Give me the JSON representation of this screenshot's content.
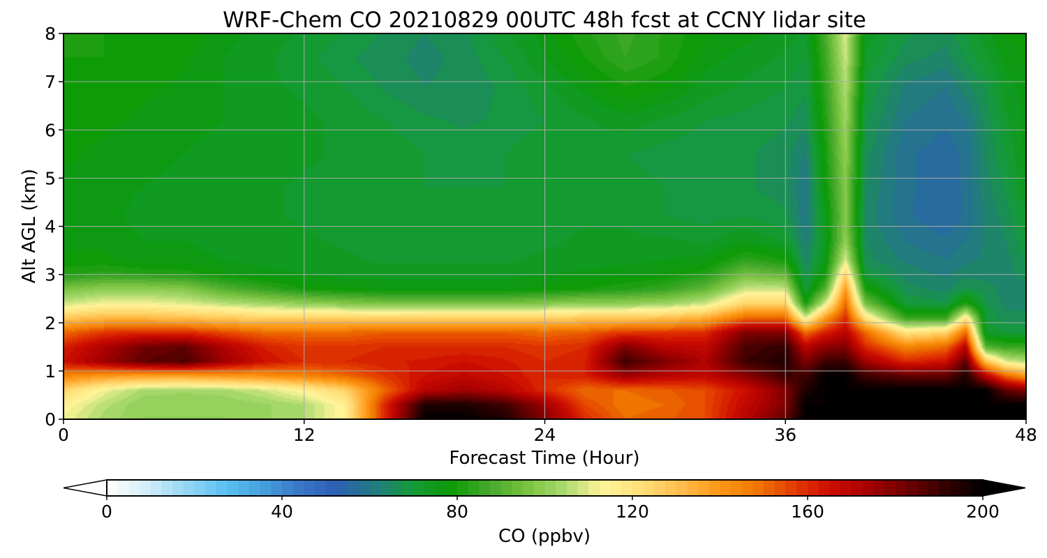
{
  "chart_data": {
    "type": "heatmap",
    "title": "WRF-Chem CO  20210829 00UTC 48h fcst at CCNY lidar site",
    "xlabel": "Forecast Time (Hour)",
    "ylabel": "Alt AGL (km)",
    "xlim": [
      0,
      48
    ],
    "ylim": [
      0,
      8
    ],
    "xticks": [
      0,
      12,
      24,
      36,
      48
    ],
    "yticks": [
      0,
      1,
      2,
      3,
      4,
      5,
      6,
      7,
      8
    ],
    "grid": true,
    "colorbar": {
      "label": "CO  (ppbv)",
      "min": 0,
      "max": 200,
      "ticks": [
        0,
        40,
        80,
        120,
        160,
        200
      ],
      "extend": "both",
      "colors": [
        "#ffffff",
        "#d6eefa",
        "#9ad8f5",
        "#5fc3f2",
        "#46a4e0",
        "#3a78c8",
        "#2e5fb4",
        "#227a82",
        "#159a3a",
        "#0b9a06",
        "#43a82a",
        "#77c23f",
        "#a9d96d",
        "#fff59a",
        "#ffe07a",
        "#ffc04f",
        "#ff9a1a",
        "#f07a00",
        "#e43e00",
        "#cc0c00",
        "#a60000",
        "#6e0000",
        "#350000",
        "#000000"
      ]
    },
    "x": [
      0,
      2,
      4,
      6,
      8,
      10,
      12,
      14,
      16,
      18,
      20,
      22,
      24,
      26,
      28,
      30,
      32,
      34,
      36,
      37,
      38,
      39,
      40,
      42,
      44,
      45,
      46,
      47,
      48
    ],
    "y": [
      0,
      0.3,
      0.6,
      0.9,
      1.2,
      1.5,
      1.8,
      2.1,
      2.4,
      2.7,
      3.0,
      3.3,
      3.7,
      4.2,
      4.8,
      5.5,
      6.2,
      6.9,
      7.5,
      8.0
    ],
    "z": [
      [
        112,
        104,
        100,
        100,
        100,
        102,
        105,
        115,
        160,
        200,
        200,
        195,
        180,
        160,
        150,
        152,
        155,
        170,
        185,
        200,
        200,
        200,
        200,
        200,
        200,
        200,
        200,
        200,
        200
      ],
      [
        115,
        106,
        100,
        100,
        100,
        102,
        105,
        115,
        160,
        195,
        195,
        190,
        175,
        155,
        148,
        150,
        155,
        168,
        180,
        200,
        200,
        200,
        200,
        200,
        200,
        200,
        200,
        200,
        200
      ],
      [
        125,
        112,
        104,
        103,
        104,
        108,
        115,
        125,
        150,
        170,
        175,
        170,
        160,
        150,
        150,
        152,
        155,
        165,
        180,
        195,
        200,
        200,
        200,
        200,
        200,
        200,
        200,
        185,
        180
      ],
      [
        145,
        140,
        138,
        138,
        140,
        142,
        145,
        150,
        158,
        165,
        168,
        165,
        160,
        162,
        175,
        170,
        168,
        178,
        190,
        190,
        200,
        200,
        190,
        185,
        185,
        195,
        170,
        150,
        140
      ],
      [
        165,
        175,
        185,
        188,
        175,
        165,
        160,
        160,
        162,
        163,
        165,
        163,
        160,
        162,
        190,
        180,
        172,
        190,
        195,
        180,
        190,
        190,
        175,
        160,
        165,
        185,
        130,
        110,
        105
      ],
      [
        162,
        172,
        182,
        185,
        172,
        162,
        158,
        158,
        160,
        160,
        160,
        160,
        158,
        160,
        180,
        170,
        168,
        188,
        192,
        170,
        178,
        180,
        160,
        145,
        150,
        170,
        90,
        85,
        85
      ],
      [
        150,
        158,
        160,
        160,
        155,
        150,
        150,
        150,
        152,
        152,
        152,
        152,
        150,
        152,
        158,
        158,
        160,
        180,
        180,
        150,
        162,
        170,
        150,
        120,
        125,
        150,
        72,
        70,
        70
      ],
      [
        128,
        132,
        132,
        130,
        128,
        125,
        125,
        125,
        125,
        126,
        126,
        126,
        125,
        128,
        128,
        130,
        135,
        150,
        150,
        110,
        140,
        160,
        120,
        85,
        85,
        120,
        70,
        66,
        66
      ],
      [
        108,
        112,
        112,
        110,
        106,
        103,
        100,
        98,
        96,
        96,
        96,
        96,
        98,
        100,
        100,
        102,
        108,
        125,
        125,
        80,
        110,
        150,
        95,
        70,
        68,
        82,
        68,
        64,
        64
      ],
      [
        96,
        100,
        100,
        98,
        90,
        85,
        80,
        78,
        77,
        77,
        77,
        77,
        78,
        80,
        82,
        85,
        92,
        108,
        108,
        70,
        90,
        140,
        80,
        66,
        64,
        68,
        66,
        64,
        64
      ],
      [
        82,
        84,
        83,
        82,
        78,
        76,
        75,
        74,
        74,
        74,
        74,
        74,
        75,
        76,
        77,
        78,
        82,
        95,
        92,
        66,
        80,
        125,
        70,
        64,
        62,
        64,
        64,
        64,
        66
      ],
      [
        78,
        78,
        76,
        76,
        75,
        74,
        74,
        73,
        72,
        72,
        72,
        72,
        73,
        73,
        74,
        75,
        76,
        84,
        80,
        64,
        76,
        110,
        66,
        62,
        60,
        62,
        63,
        64,
        68
      ],
      [
        77,
        77,
        75,
        75,
        74,
        74,
        73,
        72,
        72,
        72,
        72,
        72,
        72,
        73,
        73,
        73,
        72,
        75,
        72,
        62,
        74,
        100,
        65,
        60,
        58,
        60,
        63,
        65,
        70
      ],
      [
        76,
        76,
        74,
        74,
        73,
        73,
        72,
        72,
        72,
        71,
        71,
        72,
        72,
        72,
        72,
        70,
        69,
        70,
        68,
        60,
        75,
        98,
        64,
        58,
        55,
        58,
        63,
        66,
        72
      ],
      [
        77,
        76,
        75,
        74,
        73,
        73,
        72,
        72,
        72,
        70,
        70,
        70,
        72,
        72,
        71,
        70,
        68,
        68,
        66,
        60,
        78,
        98,
        65,
        58,
        56,
        58,
        64,
        68,
        75
      ],
      [
        78,
        77,
        76,
        75,
        74,
        74,
        73,
        72,
        72,
        70,
        69,
        70,
        72,
        72,
        70,
        69,
        68,
        68,
        66,
        62,
        80,
        100,
        66,
        58,
        56,
        58,
        65,
        70,
        76
      ],
      [
        78,
        78,
        77,
        76,
        75,
        74,
        73,
        72,
        70,
        68,
        67,
        68,
        70,
        72,
        74,
        72,
        70,
        69,
        68,
        66,
        82,
        102,
        68,
        60,
        58,
        60,
        66,
        72,
        76
      ],
      [
        79,
        79,
        78,
        77,
        75,
        73,
        72,
        70,
        67,
        65,
        66,
        68,
        72,
        76,
        80,
        78,
        74,
        72,
        70,
        68,
        84,
        105,
        70,
        62,
        60,
        64,
        68,
        74,
        76
      ],
      [
        80,
        80,
        79,
        78,
        75,
        73,
        71,
        68,
        66,
        64,
        66,
        70,
        75,
        80,
        85,
        82,
        76,
        74,
        72,
        70,
        86,
        108,
        72,
        66,
        64,
        68,
        72,
        76,
        78
      ],
      [
        80,
        80,
        80,
        79,
        76,
        74,
        72,
        70,
        67,
        65,
        67,
        72,
        76,
        82,
        86,
        82,
        78,
        76,
        74,
        72,
        88,
        110,
        74,
        68,
        66,
        70,
        74,
        78,
        78
      ]
    ]
  }
}
